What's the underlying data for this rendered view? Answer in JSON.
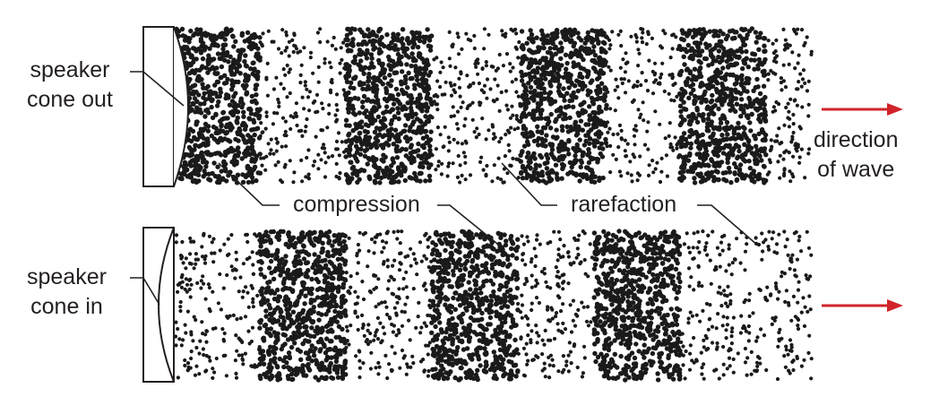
{
  "labels": {
    "speaker_out": [
      "speaker",
      "cone out"
    ],
    "speaker_in": [
      "speaker",
      "cone in"
    ],
    "compression": "compression",
    "rarefaction": "rarefaction",
    "direction": [
      "direction",
      "of wave"
    ]
  },
  "colors": {
    "particles": "#1a1a1a",
    "lines": "#231f20",
    "arrow": "#d1232a"
  },
  "bands": {
    "top_compression_centers": [
      0.065,
      0.335,
      0.61,
      0.86
    ],
    "bottom_compression_centers": [
      0.2,
      0.47,
      0.725
    ]
  }
}
